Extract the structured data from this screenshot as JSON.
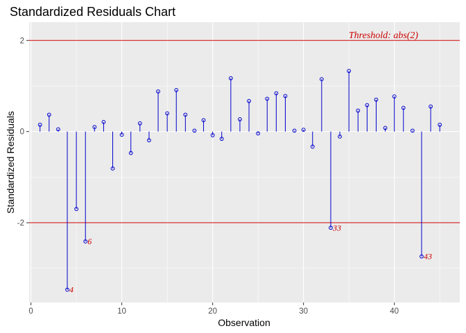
{
  "chart_data": {
    "type": "scatter",
    "title": "Standardized Residuals Chart",
    "xlabel": "Observation",
    "ylabel": "Standardized Residuals",
    "xlim": [
      -0.2,
      47.2
    ],
    "ylim": [
      -3.75,
      2.4
    ],
    "xticks": [
      0,
      10,
      20,
      30,
      40
    ],
    "yticks": [
      -2,
      0,
      2
    ],
    "grid": true,
    "background": "#ebebeb",
    "threshold": {
      "value": 2,
      "label": "Threshold: abs(2)",
      "color": "#cc0000"
    },
    "series": [
      {
        "color": "#0000cc",
        "x": [
          1,
          2,
          3,
          4,
          5,
          6,
          7,
          8,
          9,
          10,
          11,
          12,
          13,
          14,
          15,
          16,
          17,
          18,
          19,
          20,
          21,
          22,
          23,
          24,
          25,
          26,
          27,
          28,
          29,
          30,
          31,
          32,
          33,
          34,
          35,
          36,
          37,
          38,
          39,
          40,
          41,
          42,
          43,
          44,
          45
        ],
        "values": [
          0.15,
          0.37,
          0.05,
          -3.47,
          -1.7,
          -2.41,
          0.1,
          0.21,
          -0.81,
          -0.07,
          -0.47,
          0.18,
          -0.19,
          0.88,
          0.4,
          0.91,
          0.37,
          0.02,
          0.25,
          -0.08,
          -0.16,
          1.17,
          0.27,
          0.67,
          -0.04,
          0.72,
          0.84,
          0.78,
          0.02,
          0.04,
          -0.33,
          1.15,
          -2.11,
          -0.11,
          1.33,
          0.46,
          0.58,
          0.7,
          0.08,
          0.77,
          0.52,
          0.02,
          -2.74,
          0.55,
          0.15
        ]
      }
    ],
    "outliers": [
      {
        "x": 4,
        "label": "4"
      },
      {
        "x": 6,
        "label": "6"
      },
      {
        "x": 33,
        "label": "33"
      },
      {
        "x": 43,
        "label": "43"
      }
    ]
  }
}
